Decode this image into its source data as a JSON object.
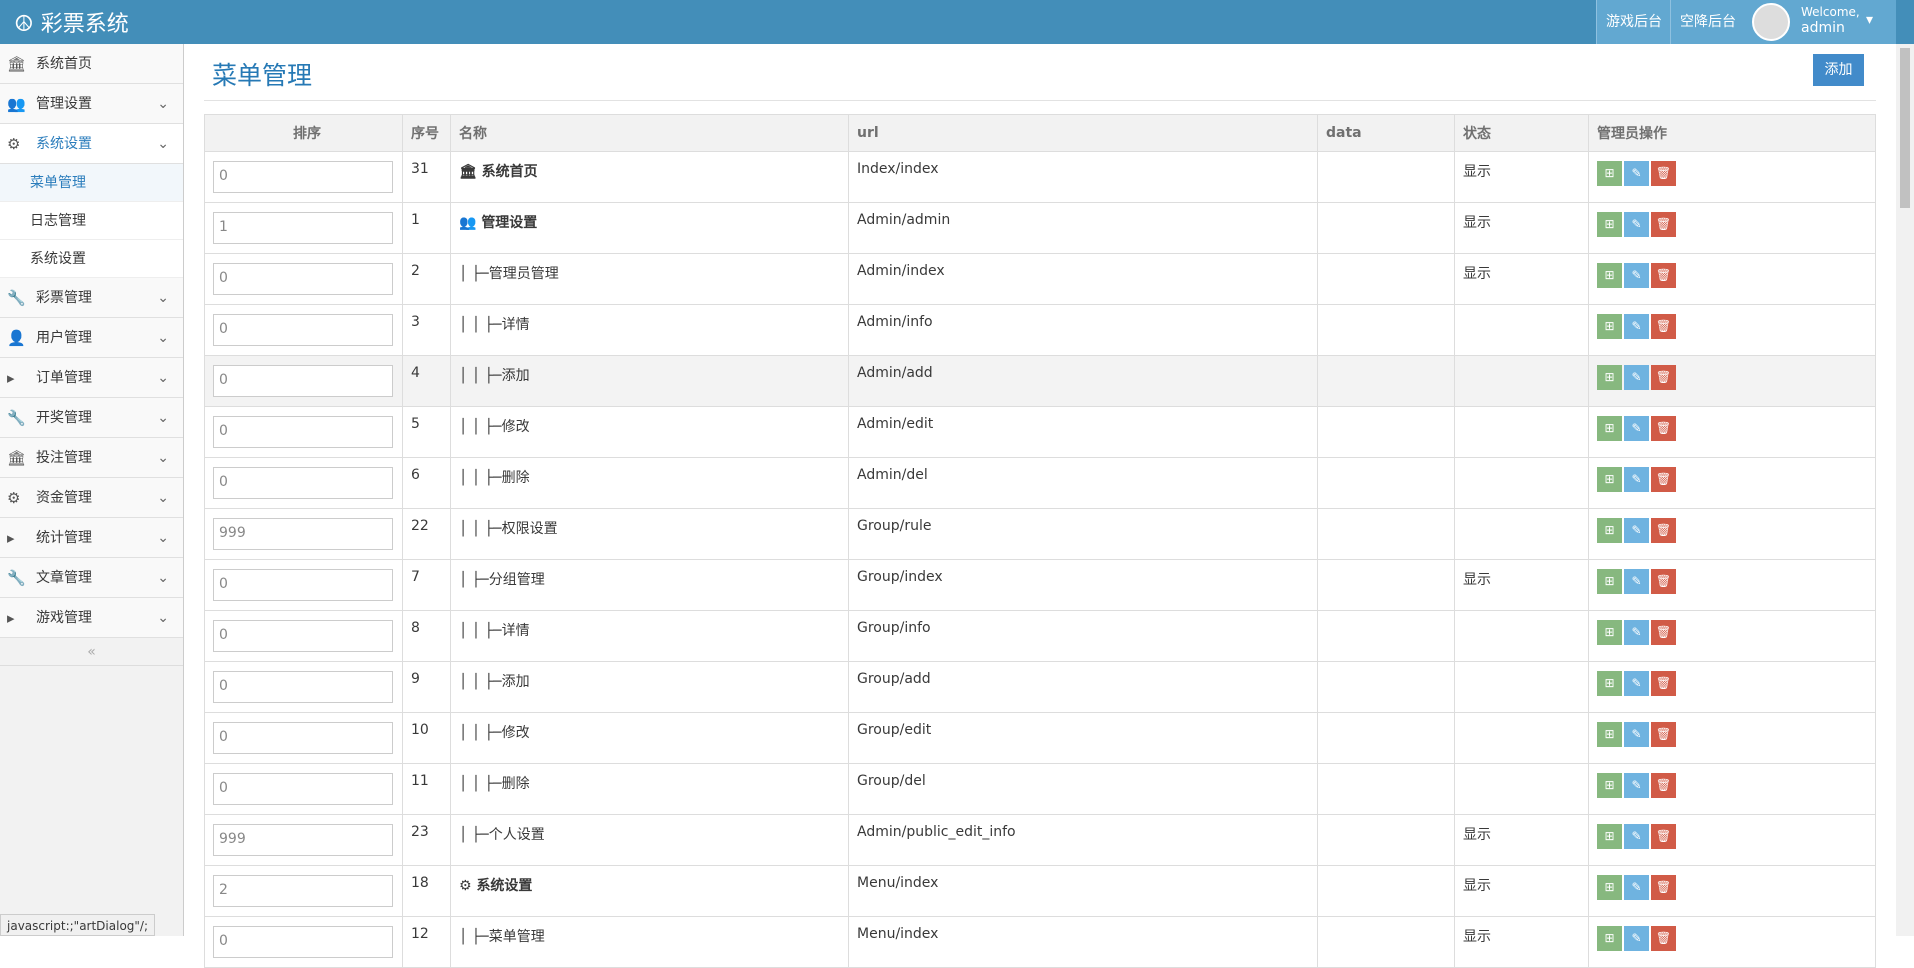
{
  "header": {
    "brand": "彩票系统",
    "links": [
      "游戏后台",
      "空降后台"
    ],
    "welcome": "Welcome,",
    "user": "admin"
  },
  "sidebar": {
    "items": [
      {
        "label": "系统首页"
      },
      {
        "label": "管理设置"
      },
      {
        "label": "系统设置",
        "children": [
          "菜单管理",
          "日志管理",
          "系统设置"
        ]
      },
      {
        "label": "彩票管理"
      },
      {
        "label": "用户管理"
      },
      {
        "label": "订单管理"
      },
      {
        "label": "开奖管理"
      },
      {
        "label": "投注管理"
      },
      {
        "label": "资金管理"
      },
      {
        "label": "统计管理"
      },
      {
        "label": "文章管理"
      },
      {
        "label": "游戏管理"
      }
    ]
  },
  "page": {
    "title": "菜单管理",
    "add_button": "添加"
  },
  "table": {
    "columns": [
      "排序",
      "序号",
      "名称",
      "url",
      "data",
      "状态",
      "管理员操作"
    ],
    "rows": [
      {
        "sort": 0,
        "id": 31,
        "name": "系统首页",
        "url": "Index/index",
        "status": "显示"
      },
      {
        "sort": 1,
        "id": 1,
        "name": "管理设置",
        "url": "Admin/admin",
        "status": "显示"
      },
      {
        "sort": 0,
        "id": 2,
        "name": "│ ├─管理员管理",
        "url": "Admin/index",
        "status": "显示"
      },
      {
        "sort": 0,
        "id": 3,
        "name": "│ │ ├─详情",
        "url": "Admin/info",
        "status": null
      },
      {
        "sort": 0,
        "id": 4,
        "name": "│ │ ├─添加",
        "url": "Admin/add",
        "status": null
      },
      {
        "sort": 0,
        "id": 5,
        "name": "│ │ ├─修改",
        "url": "Admin/edit",
        "status": null
      },
      {
        "sort": 0,
        "id": 6,
        "name": "│ │ ├─删除",
        "url": "Admin/del",
        "status": null
      },
      {
        "sort": 999,
        "id": 22,
        "name": "│ │ ├─权限设置",
        "url": "Group/rule",
        "status": null
      },
      {
        "sort": 0,
        "id": 7,
        "name": "│ ├─分组管理",
        "url": "Group/index",
        "status": "显示"
      },
      {
        "sort": 0,
        "id": 8,
        "name": "│ │ ├─详情",
        "url": "Group/info",
        "status": null
      },
      {
        "sort": 0,
        "id": 9,
        "name": "│ │ ├─添加",
        "url": "Group/add",
        "status": null
      },
      {
        "sort": 0,
        "id": 10,
        "name": "│ │ ├─修改",
        "url": "Group/edit",
        "status": null
      },
      {
        "sort": 0,
        "id": 11,
        "name": "│ │ ├─删除",
        "url": "Group/del",
        "status": null
      },
      {
        "sort": 999,
        "id": 23,
        "name": "│ ├─个人设置",
        "url": "Admin/public_edit_info",
        "status": "显示"
      },
      {
        "sort": 2,
        "id": 18,
        "name": "系统设置",
        "url": "Menu/index",
        "status": "显示"
      },
      {
        "sort": 0,
        "id": 12,
        "name": "│ ├─菜单管理",
        "url": "Menu/index",
        "status": "显示"
      }
    ]
  },
  "statusbar": "javascript:;\"artDialog\"/;"
}
